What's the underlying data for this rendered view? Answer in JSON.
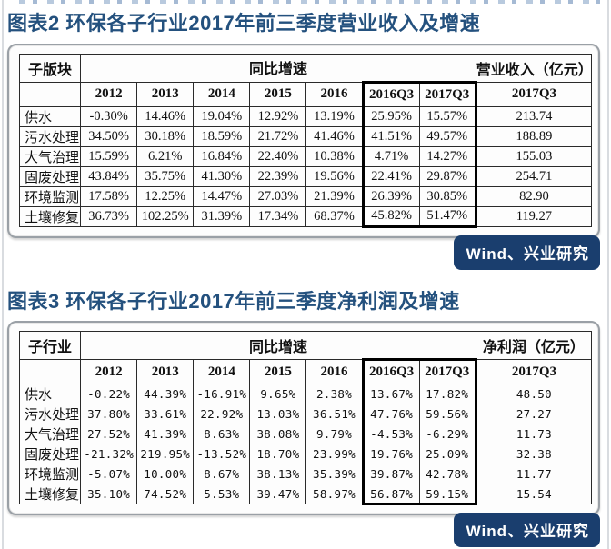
{
  "theme": {
    "accent_color": "#24517E",
    "badge_color": "#1A3E6E",
    "highlight_box_color": "#000000"
  },
  "figures": [
    {
      "title": "图表2 环保各子行业2017年前三季度营业收入及增速",
      "label_header": "子版块",
      "growth_header": "同比增速",
      "value_header": "营业收入（亿元）",
      "year_cols": [
        "2012",
        "2013",
        "2014",
        "2015",
        "2016",
        "2016Q3",
        "2017Q3"
      ],
      "value_col": "2017Q3",
      "rows": [
        {
          "label": "供水",
          "growth": [
            "-0.30%",
            "14.46%",
            "19.04%",
            "12.92%",
            "13.19%",
            "25.95%",
            "15.57%"
          ],
          "value": "213.74"
        },
        {
          "label": "污水处理",
          "growth": [
            "34.50%",
            "30.18%",
            "18.59%",
            "21.72%",
            "41.46%",
            "41.51%",
            "49.57%"
          ],
          "value": "188.89"
        },
        {
          "label": "大气治理",
          "growth": [
            "15.59%",
            "6.21%",
            "16.84%",
            "22.40%",
            "10.38%",
            "4.71%",
            "14.27%"
          ],
          "value": "155.03"
        },
        {
          "label": "固废处理",
          "growth": [
            "43.84%",
            "35.75%",
            "41.30%",
            "22.39%",
            "19.56%",
            "22.41%",
            "29.87%"
          ],
          "value": "254.71"
        },
        {
          "label": "环境监测",
          "growth": [
            "17.58%",
            "12.25%",
            "14.47%",
            "27.03%",
            "21.39%",
            "26.39%",
            "30.85%"
          ],
          "value": "82.90"
        },
        {
          "label": "土壤修复",
          "growth": [
            "36.73%",
            "102.25%",
            "31.39%",
            "17.34%",
            "68.37%",
            "45.82%",
            "51.47%"
          ],
          "value": "119.27"
        }
      ],
      "source": "Wind、兴业研究"
    },
    {
      "title": "图表3 环保各子行业2017年前三季度净利润及增速",
      "label_header": "子行业",
      "growth_header": "同比增速",
      "value_header": "净利润（亿元）",
      "year_cols": [
        "2012",
        "2013",
        "2014",
        "2015",
        "2016",
        "2016Q3",
        "2017Q3"
      ],
      "value_col": "2017Q3",
      "rows": [
        {
          "label": "供水",
          "growth": [
            "-0.22%",
            "44.39%",
            "-16.91%",
            "9.65%",
            "2.38%",
            "13.67%",
            "17.82%"
          ],
          "value": "48.50"
        },
        {
          "label": "污水处理",
          "growth": [
            "37.80%",
            "33.61%",
            "22.92%",
            "13.03%",
            "36.51%",
            "47.76%",
            "59.56%"
          ],
          "value": "27.27"
        },
        {
          "label": "大气治理",
          "growth": [
            "27.52%",
            "41.39%",
            "8.63%",
            "38.08%",
            "9.79%",
            "-4.53%",
            "-6.29%"
          ],
          "value": "11.73"
        },
        {
          "label": "固废处理",
          "growth": [
            "-21.32%",
            "219.95%",
            "-13.52%",
            "18.70%",
            "23.99%",
            "19.76%",
            "25.09%"
          ],
          "value": "32.38"
        },
        {
          "label": "环境监测",
          "growth": [
            "-5.07%",
            "10.00%",
            "8.67%",
            "38.13%",
            "35.39%",
            "39.87%",
            "42.78%"
          ],
          "value": "11.77"
        },
        {
          "label": "土壤修复",
          "growth": [
            "35.10%",
            "74.52%",
            "5.53%",
            "39.47%",
            "58.97%",
            "56.87%",
            "59.15%"
          ],
          "value": "15.54"
        }
      ],
      "source": "Wind、兴业研究"
    }
  ]
}
